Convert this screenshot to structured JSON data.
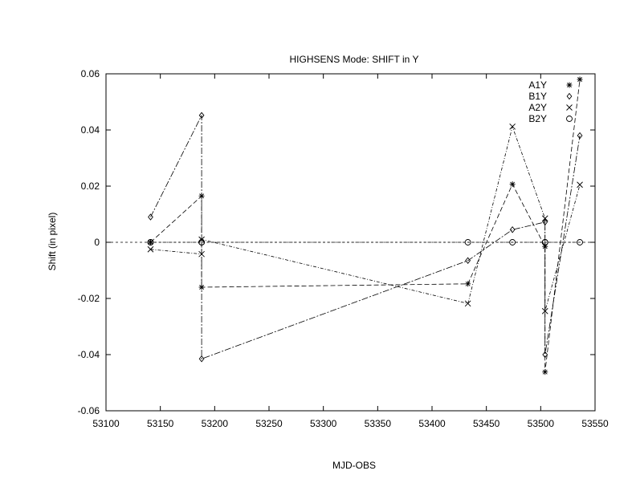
{
  "chart_data": {
    "type": "line",
    "title": "HIGHSENS Mode: SHIFT in Y",
    "xlabel": "MJD-OBS",
    "ylabel": "Shift (in pixel)",
    "xlim": [
      53100,
      53550
    ],
    "ylim": [
      -0.06,
      0.06
    ],
    "xticks": [
      53100,
      53150,
      53200,
      53250,
      53300,
      53350,
      53400,
      53450,
      53500,
      53550
    ],
    "yticks": [
      -0.06,
      -0.04,
      -0.02,
      0,
      0.02,
      0.04,
      0.06
    ],
    "xtick_labels": [
      "53100",
      "53150",
      "53200",
      "53250",
      "53300",
      "53350",
      "53400",
      "53450",
      "53500",
      "53550"
    ],
    "ytick_labels": [
      "-0.06",
      "-0.04",
      "-0.02",
      "0",
      "0.02",
      "0.04",
      "0.06"
    ],
    "grid": false,
    "legend": "top-right",
    "series": [
      {
        "name": "A1Y",
        "marker": "star",
        "points": [
          [
            53141,
            0.0
          ],
          [
            53141,
            0.0
          ],
          [
            53188,
            0.0165
          ],
          [
            53188,
            -0.016
          ],
          [
            53433,
            -0.0148
          ],
          [
            53474,
            0.0207
          ],
          [
            53504,
            -0.0015
          ],
          [
            53504,
            -0.0462
          ],
          [
            53536,
            0.058
          ]
        ]
      },
      {
        "name": "B1Y",
        "marker": "diamond",
        "points": [
          [
            53141,
            0.009
          ],
          [
            53188,
            0.0452
          ],
          [
            53188,
            -0.0415
          ],
          [
            53433,
            -0.0065
          ],
          [
            53474,
            0.0045
          ],
          [
            53504,
            0.0072
          ],
          [
            53504,
            -0.04
          ],
          [
            53536,
            0.038
          ]
        ]
      },
      {
        "name": "A2Y",
        "marker": "cross",
        "points": [
          [
            53141,
            -0.0025
          ],
          [
            53188,
            -0.0042
          ],
          [
            53188,
            0.001
          ],
          [
            53433,
            -0.0218
          ],
          [
            53474,
            0.0412
          ],
          [
            53504,
            0.0085
          ],
          [
            53504,
            -0.0245
          ],
          [
            53536,
            0.0205
          ]
        ]
      },
      {
        "name": "B2Y",
        "marker": "circle",
        "points": [
          [
            53141,
            0.0
          ],
          [
            53141,
            0.0
          ],
          [
            53188,
            0.0
          ],
          [
            53188,
            0.0
          ],
          [
            53433,
            0.0
          ],
          [
            53474,
            0.0
          ],
          [
            53504,
            0.0
          ],
          [
            53504,
            0.0
          ],
          [
            53536,
            0.0
          ]
        ]
      }
    ]
  }
}
